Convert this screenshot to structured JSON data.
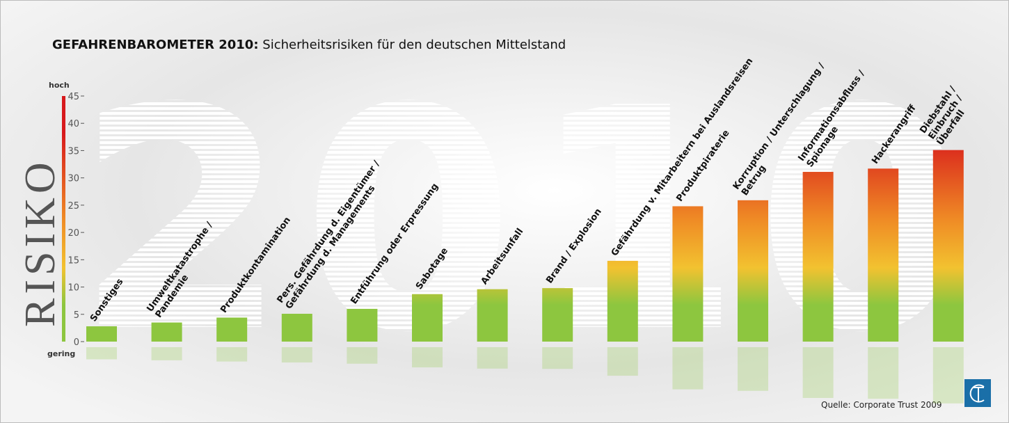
{
  "chart_data": {
    "type": "bar",
    "title": "GEFAHRENBAROMETER 2010:",
    "subtitle": "Sicherheitsrisiken für den deutschen Mittelstand",
    "y_label": "RISIKO",
    "y_high_label": "hoch",
    "y_low_label": "gering",
    "background_text": "2010",
    "source": "Quelle: Corporate Trust 2009",
    "categories": [
      [
        "Sonstiges"
      ],
      [
        "Umweltkatastrophe /",
        "Pandemie"
      ],
      [
        "Produktkontamination"
      ],
      [
        "Pers. Gefährdung d. Eigentümer /",
        "Gefährdung d. Managements"
      ],
      [
        "Entführung oder Erpressung"
      ],
      [
        "Sabotage"
      ],
      [
        "Arbeitsunfall"
      ],
      [
        "Brand / Explosion"
      ],
      [
        "Gefährdung v. Mitarbeitern bei Auslandsreisen"
      ],
      [
        "Produktpiraterie"
      ],
      [
        "Korruption / Unterschlagung /",
        "Betrug"
      ],
      [
        "Informationsabfluss /",
        "Spionage"
      ],
      [
        "Hackerangriff"
      ],
      [
        "Diebstahl /",
        "Einbruch /",
        "Überfall"
      ]
    ],
    "values": [
      2.8,
      3.5,
      4.4,
      5.1,
      6.0,
      8.7,
      9.6,
      9.8,
      14.8,
      24.8,
      25.9,
      31.1,
      31.7,
      35.1
    ],
    "gradient": [
      "#8dc63f",
      "#f2c230",
      "#ef8a25",
      "#d7191c"
    ],
    "ylim": [
      0,
      45
    ],
    "yticks": [
      0,
      5,
      10,
      15,
      20,
      25,
      30,
      35,
      40,
      45
    ]
  }
}
